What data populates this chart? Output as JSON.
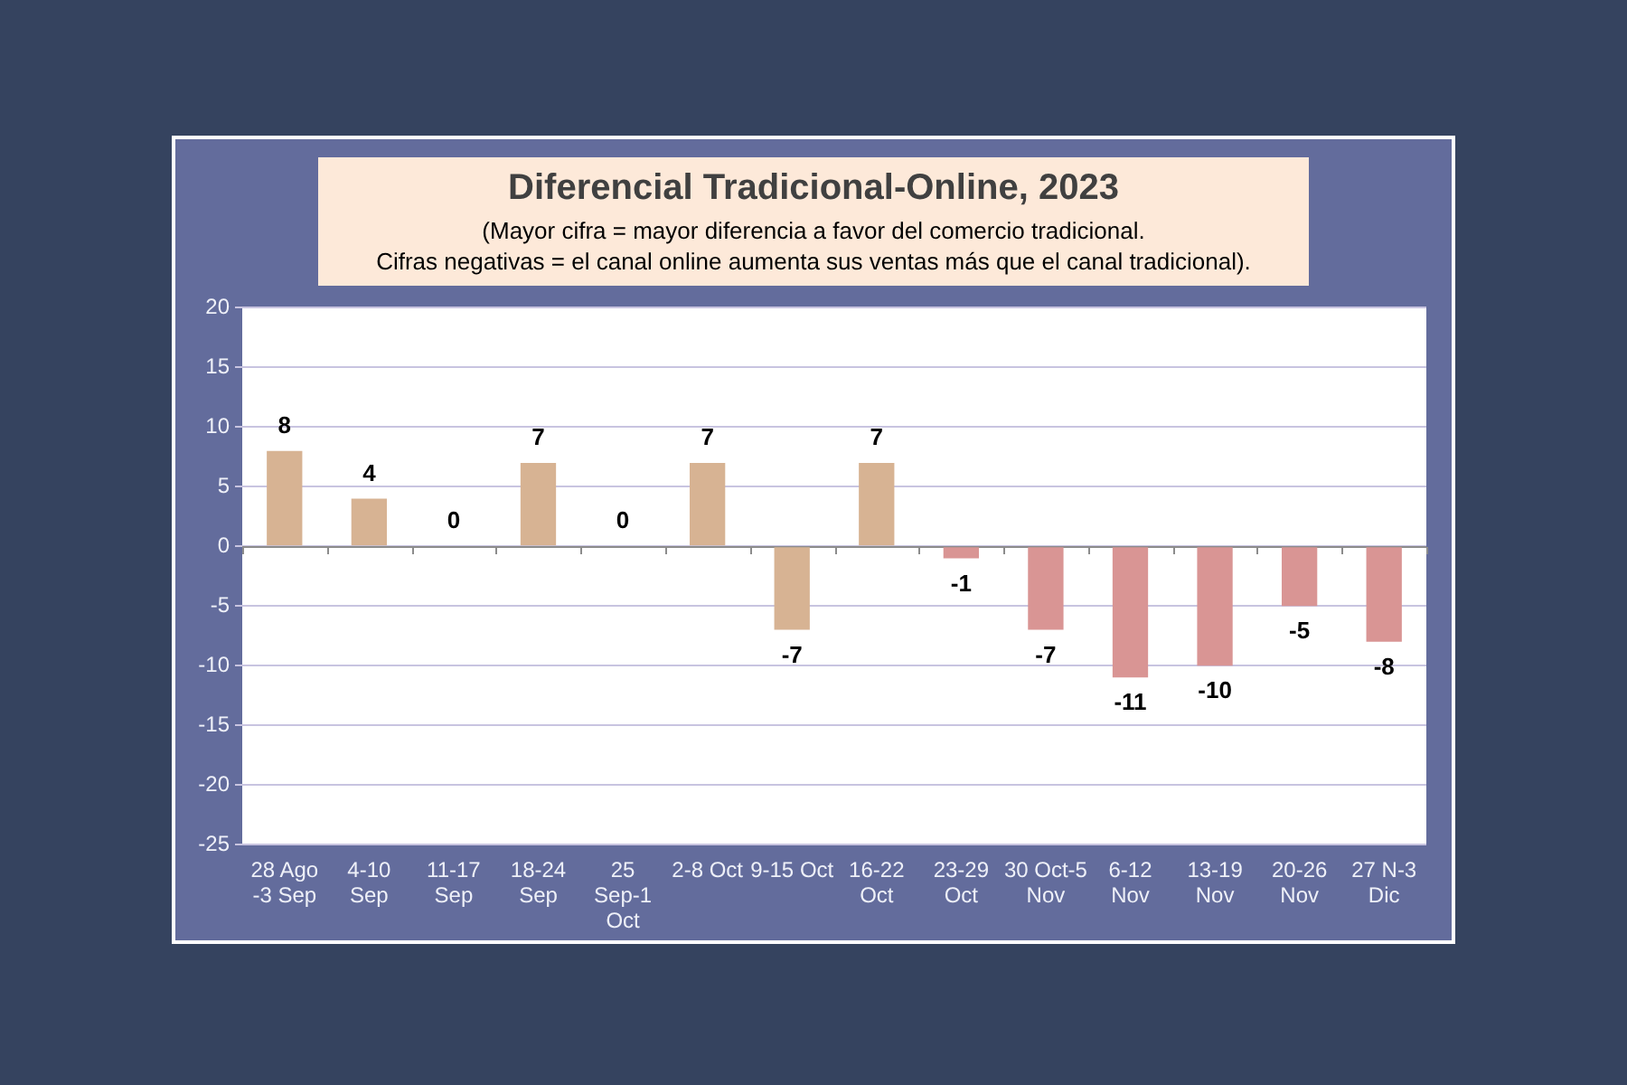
{
  "chart_data": {
    "type": "bar",
    "title": "Diferencial Tradicional-Online, 2023",
    "subtitle": "(Mayor cifra = mayor diferencia a favor del comercio tradicional.\nCifras negativas = el canal online aumenta sus ventas más que el canal tradicional).",
    "categories": [
      "28 Ago -3 Sep",
      "4-10 Sep",
      "11-17 Sep",
      "18-24 Sep",
      "25 Sep-1 Oct",
      "2-8 Oct",
      "9-15 Oct",
      "16-22 Oct",
      "23-29 Oct",
      "30 Oct-5 Nov",
      "6-12 Nov",
      "13-19 Nov",
      "20-26 Nov",
      "27 N-3 Dic"
    ],
    "values": [
      8,
      4,
      0,
      7,
      0,
      7,
      -7,
      7,
      -1,
      -7,
      -11,
      -10,
      -5,
      -8
    ],
    "colors": [
      "#d7b393",
      "#d7b393",
      "#d7b393",
      "#d7b393",
      "#d7b393",
      "#d7b393",
      "#d7b393",
      "#d7b393",
      "#d99594",
      "#d99594",
      "#d99594",
      "#d99594",
      "#d99594",
      "#d99594"
    ],
    "ylim": [
      -25,
      20
    ],
    "yticks": [
      20,
      15,
      10,
      5,
      0,
      -5,
      -10,
      -15,
      -20,
      -25
    ],
    "grid": "y",
    "data_labels": true
  }
}
